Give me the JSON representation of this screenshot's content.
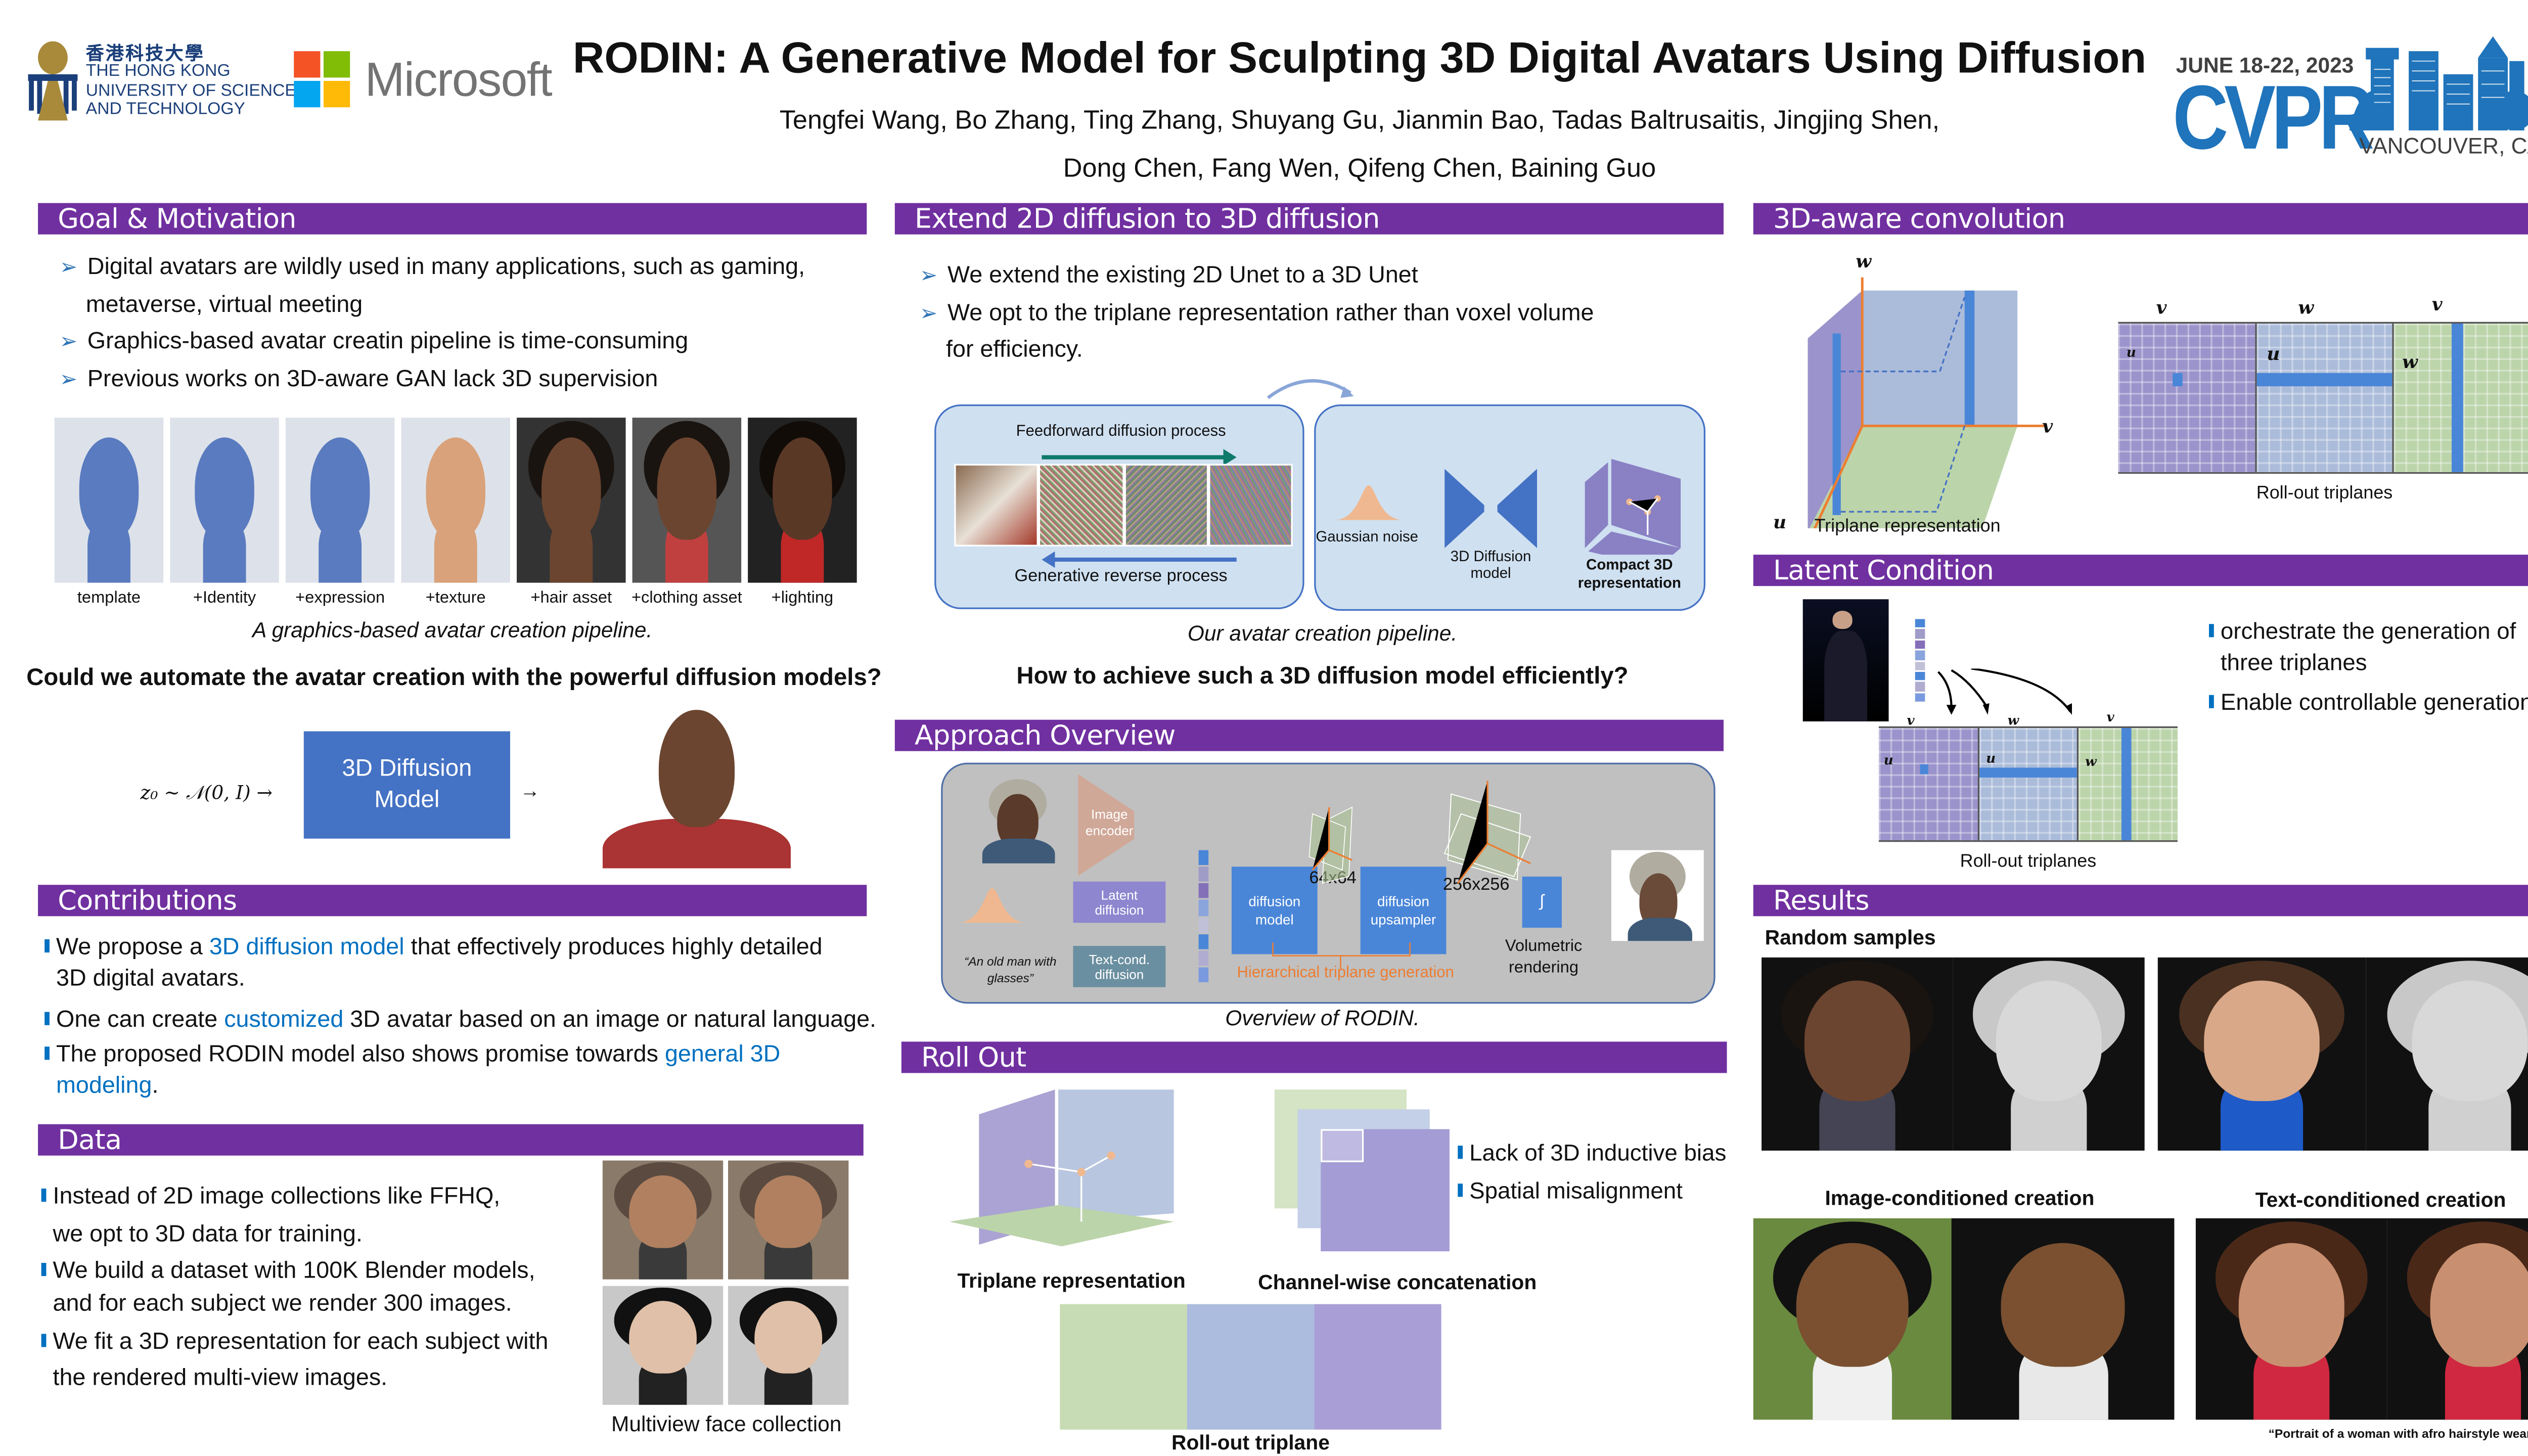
{
  "header": {
    "hkust": {
      "chinese": "香港科技大學",
      "line1": "THE HONG KONG",
      "line2": "UNIVERSITY OF SCIENCE",
      "line3": "AND TECHNOLOGY"
    },
    "microsoft": "Microsoft",
    "title": "RODIN:  A Generative Model for Sculpting 3D Digital Avatars Using Diffusion",
    "authors_line1": "Tengfei Wang,  Bo Zhang, Ting Zhang, Shuyang Gu, Jianmin Bao, Tadas Baltrusaitis, Jingjing Shen,",
    "authors_line2": "Dong Chen, Fang Wen, Qifeng Chen, Baining Guo",
    "cvpr": {
      "dates": "JUNE 18-22, 2023",
      "name": "CVPR",
      "location": "VANCOUVER, CANADA"
    }
  },
  "goal": {
    "title": "Goal & Motivation",
    "bullets": [
      "Digital avatars are wildly used in many applications, such as gaming,",
      "metaverse, virtual meeting",
      "Graphics-based avatar creatin pipeline is time-consuming",
      "Previous works on 3D-aware GAN lack 3D supervision"
    ],
    "pipeline_labels": [
      "template",
      "+Identity",
      "+expression",
      "+texture",
      "+hair asset",
      "+clothing asset",
      "+lighting"
    ],
    "caption": "A graphics-based avatar creation pipeline.",
    "question": "Could we automate the avatar creation with the powerful diffusion models?",
    "formula": "z₀ ~ 𝒩(0, I) →",
    "model_box": [
      "3D Diffusion",
      "Model"
    ],
    "arrow": "→"
  },
  "contributions": {
    "title": "Contributions",
    "b1": {
      "pre": "We propose a ",
      "hl": "3D diffusion model",
      "post": " that effectively  produces highly detailed",
      "line2": "3D digital avatars."
    },
    "b2": {
      "pre": "One can create ",
      "hl": "customized",
      "post": " 3D avatar based on an image or natural language."
    },
    "b3": {
      "pre": "The proposed RODIN model also shows promise towards ",
      "hl": "general 3D",
      "hl2": "modeling",
      "post": "."
    }
  },
  "data": {
    "title": "Data",
    "bullets": [
      "Instead of 2D image collections like FFHQ,",
      " we opt to 3D data for training.",
      "We build a dataset with 100K Blender models,",
      "and for each subject we render 300 images.",
      "We fit a 3D representation for each subject with",
      "the rendered multi-view images."
    ],
    "caption": "Multiview face collection"
  },
  "extend": {
    "title": "Extend 2D diffusion to 3D diffusion",
    "bullets": [
      "We extend the existing 2D Unet to a 3D Unet",
      "We opt to the triplane representation rather than voxel volume",
      "for efficiency."
    ],
    "feedforward": "Feedforward diffusion process",
    "reverse": "Generative reverse process",
    "gaussian": "Gaussian noise",
    "model": [
      "3D Diffusion",
      "model"
    ],
    "compact": [
      "Compact 3D",
      "representation"
    ],
    "caption": "Our avatar creation pipeline.",
    "question": "How to achieve such a 3D diffusion model efficiently?"
  },
  "approach": {
    "title": "Approach Overview",
    "image_encoder": [
      "Image",
      "encoder"
    ],
    "latent": [
      "Latent",
      "diffusion"
    ],
    "textcond": [
      "Text-cond.",
      "diffusion"
    ],
    "prompt": [
      "“An old man with",
      "glasses”"
    ],
    "diffusion_model": [
      "diffusion",
      "model"
    ],
    "res1": "64x64",
    "upsampler": [
      "diffusion",
      "upsampler"
    ],
    "res2": "256x256",
    "integral": "∫",
    "volumetric": [
      "Volumetric",
      "rendering"
    ],
    "hierarchical": "Hierarchical triplane generation",
    "caption": "Overview of RODIN.",
    "colors": {
      "encoder": "#d0a898",
      "latent": "#8e86cf",
      "textcond": "#6a8fa0",
      "block": "#4a86d8",
      "orange": "#ed7d31"
    }
  },
  "rollout": {
    "title": "Roll Out",
    "triplane_caption": "Triplane representation",
    "concat_caption": "Channel-wise concatenation",
    "bullets": [
      "Lack of 3D inductive bias",
      "Spatial misalignment"
    ],
    "rollout_caption": "Roll-out triplane"
  },
  "conv": {
    "title": "3D-aware convolution",
    "axes": {
      "u": "u",
      "v": "v",
      "w": "w"
    },
    "triplane_caption": "Triplane representation",
    "rollout_caption": "Roll-out triplanes"
  },
  "latent": {
    "title": "Latent Condition",
    "bullets": [
      "orchestrate the generation of",
      "three triplanes",
      "Enable controllable generation"
    ],
    "caption": "Roll-out triplanes"
  },
  "results": {
    "title": "Results",
    "random": "Random samples",
    "image_cond": "Image-conditioned creation",
    "text_cond": "Text-conditioned creation",
    "prompt": "“Portrait of a woman with afro hairstyle wearing red”"
  },
  "colors": {
    "section_bar": "#7030a0",
    "accent_blue": "#0070c0",
    "plane_purple": "#9b93cb",
    "plane_blue": "#abbcda",
    "plane_green": "#bcd4aa"
  }
}
